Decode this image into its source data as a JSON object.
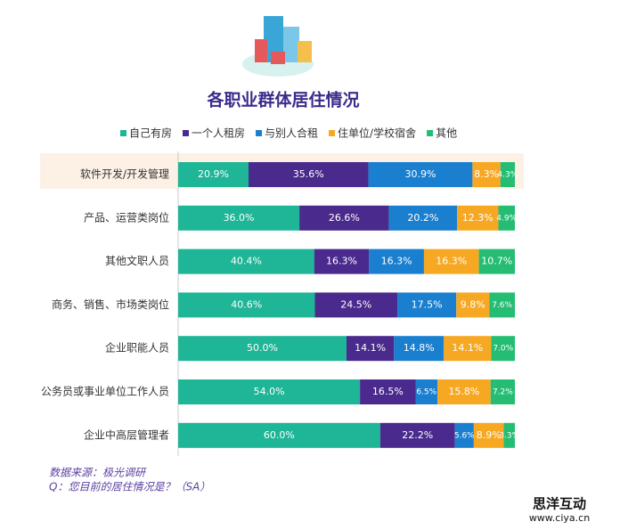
{
  "chart_data": {
    "type": "stacked-bar-horizontal",
    "title": "各职业群体居住情况",
    "categories": [
      "软件开发/开发管理",
      "产品、运营类岗位",
      "其他文职人员",
      "商务、销售、市场类岗位",
      "企业职能人员",
      "公务员或事业单位工作人员",
      "企业中高层管理者"
    ],
    "series": [
      {
        "name": "自己有房",
        "color": "#1fb597",
        "values": [
          20.9,
          36.0,
          40.4,
          40.6,
          50.0,
          54.0,
          60.0
        ],
        "value_labels": [
          "20.9%",
          "36.0%",
          "40.4%",
          "40.6%",
          "50.0%",
          "54.0%",
          "60.0%"
        ]
      },
      {
        "name": "一个人租房",
        "color": "#4a2a8c",
        "values": [
          35.6,
          26.6,
          16.3,
          24.5,
          14.1,
          16.5,
          22.2
        ],
        "value_labels": [
          "35.6%",
          "26.6%",
          "16.3%",
          "24.5%",
          "14.1%",
          "16.5%",
          "22.2%"
        ]
      },
      {
        "name": "与别人合租",
        "color": "#1b7fcf",
        "values": [
          30.9,
          20.2,
          16.3,
          17.5,
          14.8,
          6.5,
          5.6
        ],
        "value_labels": [
          "30.9%",
          "20.2%",
          "16.3%",
          "17.5%",
          "14.8%",
          "6.5%",
          "5.6%"
        ]
      },
      {
        "name": "住单位/学校宿舍",
        "color": "#f7a823",
        "values": [
          8.3,
          12.3,
          16.3,
          9.8,
          14.1,
          15.8,
          8.9
        ],
        "value_labels": [
          "8.3%",
          "12.3%",
          "16.3%",
          "9.8%",
          "14.1%",
          "15.8%",
          "8.9%"
        ]
      },
      {
        "name": "其他",
        "color": "#25bd73",
        "values": [
          4.3,
          4.9,
          10.7,
          7.6,
          7.0,
          7.2,
          3.3
        ],
        "value_labels": [
          "4.3%",
          "4.9%",
          "10.7%",
          "7.6%",
          "7.0%",
          "7.2%",
          "3.3%"
        ]
      }
    ],
    "xlim": [
      0,
      100
    ],
    "source": "数据来源：极光调研",
    "question": "Q：您目前的居住情况是？（SA）",
    "brand": "思洋互动",
    "brand_url": "www.ciya.cn"
  }
}
